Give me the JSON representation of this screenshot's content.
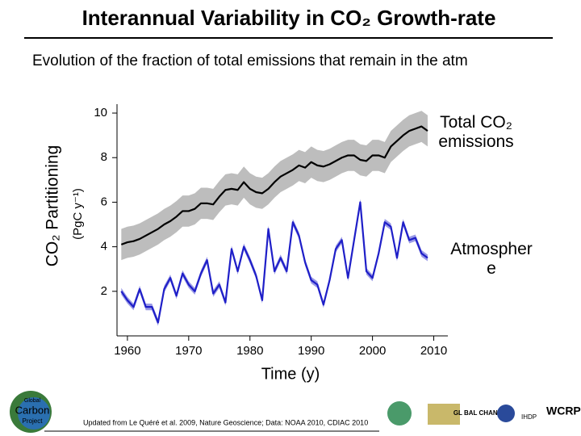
{
  "title": "Interannual Variability in CO₂ Growth-rate",
  "subtitle": "Evolution of the fraction of total emissions that remain in the atm",
  "footer": "Updated from Le Quéré et al. 2009, Nature Geoscience; Data: NOAA 2010, CDIAC 2010",
  "logos": {
    "left": [
      "Global",
      "Carbon",
      "Project"
    ],
    "right": [
      "GL BAL CHANGE",
      "IHDP",
      "WCRP"
    ]
  },
  "chart_data": {
    "type": "line",
    "y_label": "CO₂ Partitioning",
    "y_unit": "(PgC y⁻¹)",
    "x_label": "Time (y)",
    "x": [
      1959,
      1960,
      1961,
      1962,
      1963,
      1964,
      1965,
      1966,
      1967,
      1968,
      1969,
      1970,
      1971,
      1972,
      1973,
      1974,
      1975,
      1976,
      1977,
      1978,
      1979,
      1980,
      1981,
      1982,
      1983,
      1984,
      1985,
      1986,
      1987,
      1988,
      1989,
      1990,
      1991,
      1992,
      1993,
      1994,
      1995,
      1996,
      1997,
      1998,
      1999,
      2000,
      2001,
      2002,
      2003,
      2004,
      2005,
      2006,
      2007,
      2008,
      2009
    ],
    "series": [
      {
        "name": "Total CO₂ emissions",
        "color": "#000000",
        "band_color": "#bdbdbd",
        "uncertainty": 0.7,
        "values": [
          4.1,
          4.2,
          4.25,
          4.35,
          4.5,
          4.65,
          4.8,
          5.0,
          5.15,
          5.35,
          5.6,
          5.6,
          5.7,
          5.95,
          5.95,
          5.9,
          6.25,
          6.55,
          6.6,
          6.55,
          6.9,
          6.6,
          6.45,
          6.4,
          6.6,
          6.9,
          7.15,
          7.3,
          7.45,
          7.65,
          7.55,
          7.8,
          7.65,
          7.6,
          7.7,
          7.85,
          8.0,
          8.1,
          8.1,
          7.9,
          7.85,
          8.1,
          8.1,
          8.0,
          8.5,
          8.75,
          9.0,
          9.2,
          9.3,
          9.4,
          9.2
        ]
      },
      {
        "name": "Atmosphere",
        "color": "#1f1fc8",
        "band_color": "#9a9ae6",
        "uncertainty": 0.15,
        "values": [
          2.0,
          1.6,
          1.3,
          2.1,
          1.3,
          1.3,
          0.6,
          2.1,
          2.6,
          1.8,
          2.8,
          2.3,
          2.0,
          2.8,
          3.4,
          1.9,
          2.3,
          1.5,
          3.9,
          2.9,
          4.0,
          3.4,
          2.7,
          1.6,
          4.8,
          2.9,
          3.5,
          2.9,
          5.1,
          4.5,
          3.3,
          2.5,
          2.3,
          1.4,
          2.5,
          3.9,
          4.3,
          2.6,
          4.3,
          6.0,
          2.9,
          2.6,
          3.7,
          5.1,
          4.9,
          3.5,
          5.1,
          4.3,
          4.4,
          3.7,
          3.5
        ]
      }
    ],
    "xlim": [
      1958.3,
      2012.3
    ],
    "xticks": [
      1960,
      1970,
      1980,
      1990,
      2000,
      2010
    ],
    "ylim": [
      0,
      10.4
    ],
    "yticks": [
      2,
      4,
      6,
      8,
      10
    ]
  }
}
